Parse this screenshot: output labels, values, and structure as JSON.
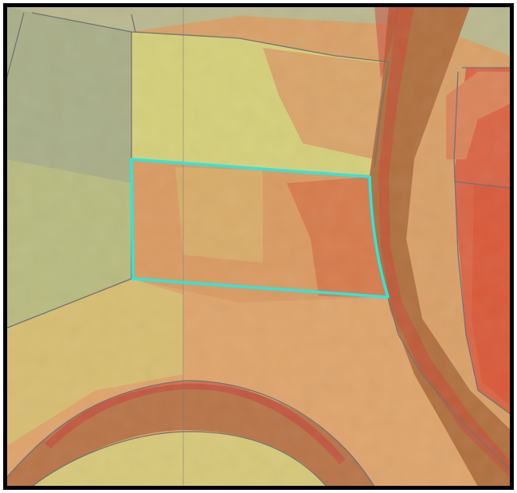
{
  "map": {
    "colors": {
      "frame": "#000000",
      "background": "#ffffff",
      "highlight": "#2ee6dc",
      "parcel_line": "#6f6f6f",
      "road": "#9a5a3c",
      "grey_green": "#a6ad86",
      "pale_yellow": "#d7d47a",
      "yellow_green": "#cfc97a",
      "orange": "#dd9a62",
      "dark_orange": "#d6784a",
      "red_orange": "#d85b3d",
      "red": "#c83c34"
    }
  }
}
